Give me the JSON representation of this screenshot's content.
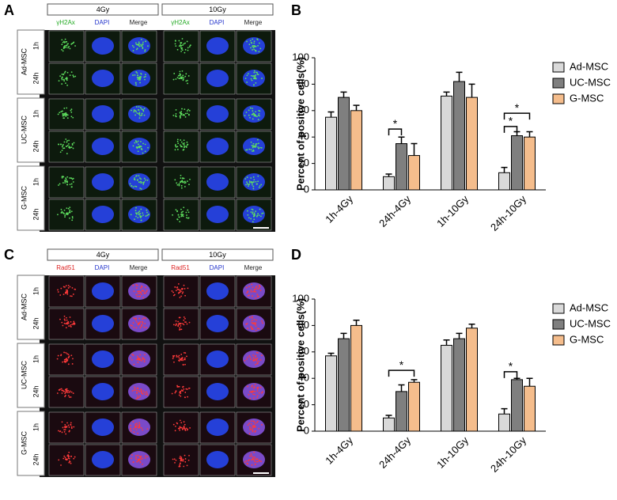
{
  "panel_labels": [
    "A",
    "B",
    "C",
    "D"
  ],
  "image_panels": [
    {
      "doses": [
        "4Gy",
        "10Gy"
      ],
      "channels": [
        "γH2Ax",
        "DAPI",
        "Merge"
      ],
      "groups": [
        "Ad-MSC",
        "UC-MSC",
        "G-MSC"
      ],
      "times": [
        "1h",
        "24h"
      ]
    },
    {
      "doses": [
        "4Gy",
        "10Gy"
      ],
      "channels": [
        "Rad51",
        "DAPI",
        "Merge"
      ],
      "groups": [
        "Ad-MSC",
        "UC-MSC",
        "G-MSC"
      ],
      "times": [
        "1h",
        "24h"
      ]
    }
  ],
  "chart_data": [
    {
      "type": "bar",
      "ylabel": "Percent of positive cells(%)",
      "categories": [
        "1h-4Gy",
        "24h-4Gy",
        "1h-10Gy",
        "24h-10Gy"
      ],
      "series": [
        {
          "name": "Ad-MSC",
          "color": "#d9d9d9",
          "values": [
            55,
            10,
            71,
            13
          ],
          "errors": [
            4,
            2,
            3,
            4
          ]
        },
        {
          "name": "UC-MSC",
          "color": "#7f7f7f",
          "values": [
            70,
            35,
            82,
            41
          ],
          "errors": [
            4,
            5,
            7,
            3
          ]
        },
        {
          "name": "G-MSC",
          "color": "#f5bd8c",
          "values": [
            60,
            26,
            70,
            40
          ],
          "errors": [
            4,
            9,
            10,
            4
          ]
        }
      ],
      "ylim": [
        0,
        100
      ],
      "yticks": [
        0,
        20,
        40,
        60,
        80,
        100
      ],
      "annotations": [
        "*",
        "*",
        "*"
      ]
    },
    {
      "type": "bar",
      "ylabel": "Percent of positive cells(%)",
      "categories": [
        "1h-4Gy",
        "24h-4Gy",
        "1h-10Gy",
        "24h-10Gy"
      ],
      "series": [
        {
          "name": "Ad-MSC",
          "color": "#d9d9d9",
          "values": [
            57,
            10,
            65,
            13
          ],
          "errors": [
            2,
            2,
            4,
            4
          ]
        },
        {
          "name": "UC-MSC",
          "color": "#7f7f7f",
          "values": [
            70,
            30,
            70,
            39
          ],
          "errors": [
            4,
            5,
            4,
            1
          ]
        },
        {
          "name": "G-MSC",
          "color": "#f5bd8c",
          "values": [
            80,
            37,
            78,
            34
          ],
          "errors": [
            4,
            2,
            3,
            6
          ]
        }
      ],
      "ylim": [
        0,
        100
      ],
      "yticks": [
        0,
        20,
        40,
        60,
        80,
        100
      ],
      "annotations": [
        "*",
        "*"
      ]
    }
  ]
}
